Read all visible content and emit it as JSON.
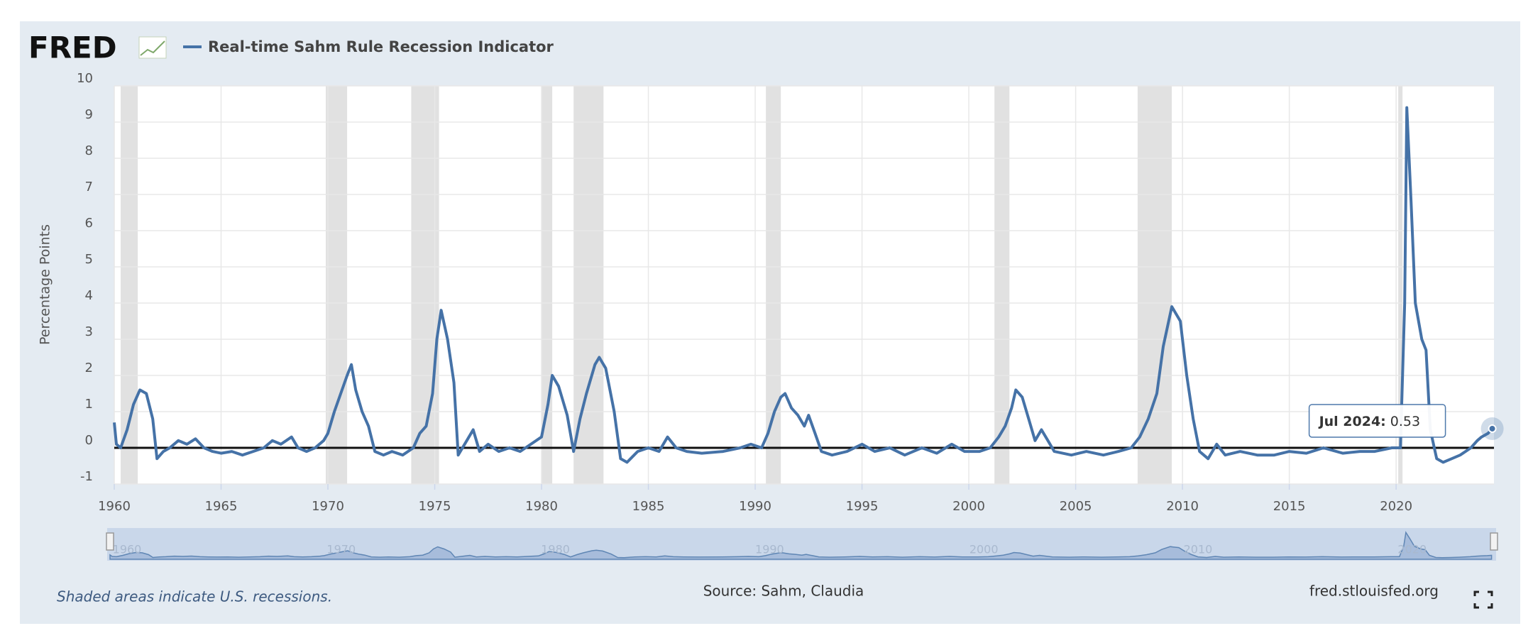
{
  "chart_data": {
    "type": "line",
    "logo": "FRED",
    "title": "Real-time Sahm Rule Recession Indicator",
    "y_label": "Percentage Points",
    "note": "Shaded areas indicate U.S. recessions.",
    "source": "Source: Sahm, Claudia",
    "site": "fred.stlouisfed.org",
    "tooltip_date": "Jul 2024:",
    "xlim": [
      1960,
      2024.58
    ],
    "xticks": [
      1960,
      1965,
      1970,
      1975,
      1980,
      1985,
      1990,
      1995,
      2000,
      2005,
      2010,
      2015,
      2020
    ],
    "ylim": [
      -1,
      10
    ],
    "yticks": [
      -1,
      0,
      1,
      2,
      3,
      4,
      5,
      6,
      7,
      8,
      9,
      10
    ],
    "grid": true,
    "recessions": [
      [
        1960.3,
        1961.1
      ],
      [
        1969.9,
        1970.9
      ],
      [
        1973.9,
        1975.2
      ],
      [
        1980.0,
        1980.5
      ],
      [
        1981.5,
        1982.9
      ],
      [
        1990.5,
        1991.2
      ],
      [
        2001.2,
        2001.9
      ],
      [
        2007.9,
        2009.5
      ],
      [
        2020.1,
        2020.3
      ]
    ],
    "x": [
      1960.0,
      1960.1,
      1960.3,
      1960.6,
      1960.9,
      1961.2,
      1961.5,
      1961.8,
      1962.0,
      1962.3,
      1962.6,
      1963.0,
      1963.4,
      1963.8,
      1964.2,
      1964.6,
      1965.0,
      1965.5,
      1966.0,
      1966.5,
      1967.0,
      1967.4,
      1967.8,
      1968.3,
      1968.6,
      1969.0,
      1969.4,
      1969.8,
      1970.0,
      1970.3,
      1970.6,
      1970.9,
      1971.1,
      1971.3,
      1971.6,
      1971.9,
      1972.2,
      1972.6,
      1973.0,
      1973.5,
      1974.0,
      1974.3,
      1974.6,
      1974.9,
      1975.1,
      1975.3,
      1975.6,
      1975.9,
      1976.1,
      1976.5,
      1976.8,
      1977.1,
      1977.5,
      1978.0,
      1978.5,
      1979.0,
      1979.5,
      1980.0,
      1980.3,
      1980.5,
      1980.8,
      1981.2,
      1981.5,
      1981.8,
      1982.1,
      1982.5,
      1982.7,
      1983.0,
      1983.4,
      1983.7,
      1984.0,
      1984.5,
      1985.0,
      1985.5,
      1985.9,
      1986.3,
      1986.8,
      1987.5,
      1988.5,
      1989.3,
      1989.8,
      1990.3,
      1990.6,
      1990.9,
      1991.2,
      1991.4,
      1991.7,
      1992.0,
      1992.3,
      1992.5,
      1992.8,
      1993.1,
      1993.6,
      1994.3,
      1995.0,
      1995.6,
      1996.3,
      1997.0,
      1997.8,
      1998.5,
      1999.2,
      1999.8,
      2000.5,
      2001.0,
      2001.4,
      2001.7,
      2002.0,
      2002.2,
      2002.5,
      2002.8,
      2003.1,
      2003.4,
      2003.7,
      2004.0,
      2004.8,
      2005.5,
      2006.3,
      2007.0,
      2007.6,
      2008.0,
      2008.4,
      2008.8,
      2009.1,
      2009.5,
      2009.9,
      2010.2,
      2010.5,
      2010.8,
      2011.2,
      2011.6,
      2012.0,
      2012.7,
      2013.5,
      2014.3,
      2015.0,
      2015.8,
      2016.6,
      2017.5,
      2018.3,
      2019.0,
      2019.8,
      2020.2,
      2020.4,
      2020.5,
      2020.7,
      2020.9,
      2021.2,
      2021.4,
      2021.6,
      2021.9,
      2022.2,
      2022.6,
      2023.0,
      2023.5,
      2023.8,
      2024.0,
      2024.3,
      2024.5
    ],
    "series": [
      {
        "name": "Real-time Sahm Rule Recession Indicator",
        "color": "#4572a7",
        "values": [
          0.7,
          0.1,
          0.0,
          0.5,
          1.2,
          1.6,
          1.5,
          0.8,
          -0.3,
          -0.1,
          0.0,
          0.2,
          0.1,
          0.25,
          0.0,
          -0.1,
          -0.15,
          -0.1,
          -0.2,
          -0.1,
          0.0,
          0.2,
          0.1,
          0.3,
          0.0,
          -0.1,
          0.0,
          0.2,
          0.4,
          1.0,
          1.5,
          2.0,
          2.3,
          1.6,
          1.0,
          0.6,
          -0.1,
          -0.2,
          -0.1,
          -0.2,
          0.0,
          0.4,
          0.6,
          1.5,
          3.0,
          3.8,
          3.0,
          1.8,
          -0.2,
          0.2,
          0.5,
          -0.1,
          0.1,
          -0.1,
          0.0,
          -0.1,
          0.1,
          0.3,
          1.2,
          2.0,
          1.7,
          0.9,
          -0.1,
          0.8,
          1.5,
          2.3,
          2.5,
          2.2,
          1.0,
          -0.3,
          -0.4,
          -0.1,
          0.0,
          -0.1,
          0.3,
          0.0,
          -0.1,
          -0.15,
          -0.1,
          0.0,
          0.1,
          0.0,
          0.4,
          1.0,
          1.4,
          1.5,
          1.1,
          0.9,
          0.6,
          0.9,
          0.4,
          -0.1,
          -0.2,
          -0.1,
          0.1,
          -0.1,
          0.0,
          -0.2,
          0.0,
          -0.15,
          0.1,
          -0.1,
          -0.1,
          0.0,
          0.3,
          0.6,
          1.1,
          1.6,
          1.4,
          0.8,
          0.2,
          0.5,
          0.2,
          -0.1,
          -0.2,
          -0.1,
          -0.2,
          -0.1,
          0.0,
          0.3,
          0.8,
          1.5,
          2.8,
          3.9,
          3.5,
          2.0,
          0.8,
          -0.1,
          -0.3,
          0.1,
          -0.2,
          -0.1,
          -0.2,
          -0.2,
          -0.1,
          -0.15,
          0.0,
          -0.15,
          -0.1,
          -0.1,
          0.0,
          0.0,
          4.0,
          9.4,
          6.8,
          4.0,
          3.0,
          2.7,
          0.5,
          -0.3,
          -0.4,
          -0.3,
          -0.2,
          0.0,
          0.2,
          0.3,
          0.4,
          0.53
        ]
      }
    ]
  }
}
